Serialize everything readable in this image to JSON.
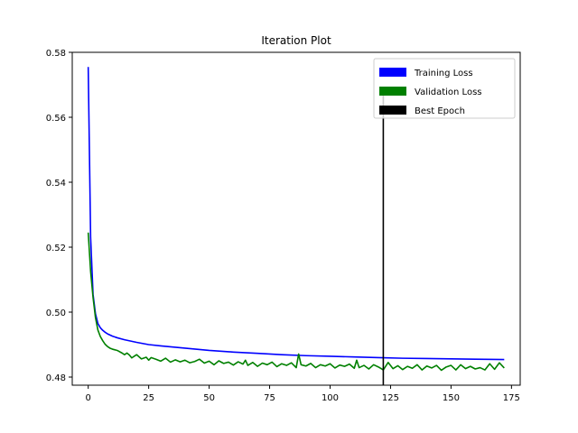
{
  "chart_data": {
    "type": "line",
    "title": "Iteration Plot",
    "xlabel": "",
    "ylabel": "",
    "xlim": [
      -6.6,
      178.6
    ],
    "ylim": [
      0.4775,
      0.58
    ],
    "x_ticks": [
      0,
      25,
      50,
      75,
      100,
      125,
      150,
      175
    ],
    "y_ticks": [
      0.48,
      0.5,
      0.52,
      0.54,
      0.56,
      0.58
    ],
    "x_tick_labels": [
      "0",
      "25",
      "50",
      "75",
      "100",
      "125",
      "150",
      "175"
    ],
    "y_tick_labels": [
      "0.48",
      "0.50",
      "0.52",
      "0.54",
      "0.56",
      "0.58"
    ],
    "grid": false,
    "legend_position": "top-right",
    "series": [
      {
        "name": "Training Loss",
        "color": "#0000ff",
        "x": [
          0,
          1,
          2,
          3,
          4,
          5,
          6,
          7,
          8,
          10,
          12,
          15,
          20,
          25,
          30,
          40,
          50,
          60,
          70,
          80,
          90,
          100,
          110,
          120,
          130,
          140,
          150,
          160,
          172
        ],
        "y": [
          0.5755,
          0.523,
          0.5055,
          0.4995,
          0.4965,
          0.4952,
          0.4944,
          0.4938,
          0.4933,
          0.4926,
          0.4921,
          0.4915,
          0.4907,
          0.49,
          0.4896,
          0.4889,
          0.4882,
          0.4877,
          0.4873,
          0.4869,
          0.4866,
          0.4864,
          0.4862,
          0.486,
          0.4858,
          0.4857,
          0.4856,
          0.4855,
          0.4854
        ]
      },
      {
        "name": "Validation Loss",
        "color": "#008000",
        "x": [
          0,
          1,
          2,
          3,
          4,
          5,
          6,
          7,
          8,
          9,
          10,
          12,
          14,
          15,
          16,
          17,
          18,
          19,
          20,
          22,
          24,
          25,
          26,
          28,
          30,
          32,
          34,
          36,
          38,
          40,
          42,
          44,
          46,
          48,
          50,
          52,
          54,
          56,
          58,
          60,
          62,
          64,
          65,
          66,
          68,
          70,
          72,
          74,
          76,
          78,
          80,
          82,
          84,
          86,
          87,
          88,
          90,
          92,
          94,
          96,
          98,
          100,
          102,
          104,
          106,
          108,
          110,
          111,
          112,
          114,
          116,
          118,
          120,
          122,
          124,
          126,
          128,
          130,
          132,
          134,
          136,
          138,
          140,
          142,
          144,
          146,
          148,
          150,
          152,
          154,
          156,
          158,
          160,
          162,
          164,
          166,
          168,
          170,
          172
        ],
        "y": [
          0.5245,
          0.5125,
          0.5045,
          0.4983,
          0.4945,
          0.4925,
          0.4912,
          0.4901,
          0.4894,
          0.4889,
          0.4886,
          0.4882,
          0.4874,
          0.4869,
          0.4874,
          0.4868,
          0.4859,
          0.4864,
          0.4869,
          0.4856,
          0.4861,
          0.4852,
          0.486,
          0.4855,
          0.4849,
          0.4858,
          0.4846,
          0.4853,
          0.4847,
          0.4852,
          0.4844,
          0.4848,
          0.4855,
          0.4843,
          0.4849,
          0.4838,
          0.485,
          0.4842,
          0.4846,
          0.4837,
          0.4847,
          0.484,
          0.4852,
          0.4836,
          0.4845,
          0.4833,
          0.4843,
          0.4838,
          0.4846,
          0.4832,
          0.4841,
          0.4836,
          0.4844,
          0.4829,
          0.4871,
          0.4838,
          0.4834,
          0.4842,
          0.4829,
          0.4838,
          0.4834,
          0.4841,
          0.4828,
          0.4837,
          0.4833,
          0.484,
          0.4827,
          0.4852,
          0.4829,
          0.4836,
          0.4825,
          0.4838,
          0.4831,
          0.4822,
          0.4845,
          0.4826,
          0.4835,
          0.4823,
          0.4833,
          0.4827,
          0.4838,
          0.4822,
          0.4834,
          0.4828,
          0.4836,
          0.4821,
          0.4831,
          0.4836,
          0.4822,
          0.4838,
          0.4826,
          0.4833,
          0.4825,
          0.4829,
          0.4822,
          0.4841,
          0.4824,
          0.4844,
          0.4828
        ]
      },
      {
        "name": "Best Epoch",
        "color": "#000000",
        "type": "vline",
        "x": [
          122,
          122
        ],
        "y": [
          0.4775,
          0.568
        ]
      }
    ]
  }
}
